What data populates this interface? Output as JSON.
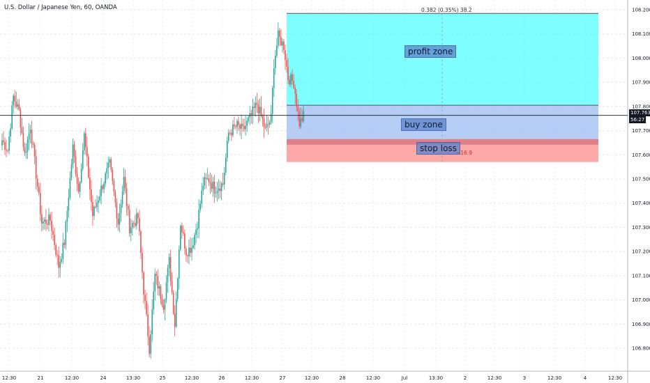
{
  "title": "U.S. Dollar / Japanese Yen, 60, OANDA",
  "price_tag": {
    "price": "107.763",
    "countdown": "56:27"
  },
  "zones": {
    "profit": "profit zone",
    "buy": "buy zone",
    "stop": "stop loss",
    "profit_ratio": "0.382 (0.35%) 38.2",
    "stop_ratio": "−16.9"
  },
  "colors": {
    "up": "#26a69a",
    "down": "#ef5350",
    "profit": "#00ffff",
    "buy": "#a9c6f5",
    "stop": "#ff9e9e"
  },
  "chart_data": {
    "type": "candlestick",
    "ylim": [
      106.72,
      108.24
    ],
    "y_ticks": [
      "108.200",
      "108.100",
      "108.000",
      "107.900",
      "107.800",
      "107.700",
      "107.600",
      "107.500",
      "107.400",
      "107.300",
      "107.200",
      "107.100",
      "107.000",
      "106.900",
      "106.800"
    ],
    "x_ticks": [
      "12:30",
      "21",
      "12:30",
      "24",
      "13:30",
      "25",
      "12:30",
      "26",
      "12:30",
      "27",
      "12:30",
      "28",
      "12:30",
      "Jul",
      "13:30",
      "2",
      "12:30",
      "3",
      "12:30",
      "4",
      "12:30"
    ],
    "last_price": 107.763,
    "trade": {
      "profit_top": 108.185,
      "entry": 107.805,
      "stop_top": 107.665,
      "stop_bottom": 107.57
    },
    "anchors": [
      [
        0,
        107.66
      ],
      [
        4,
        107.62
      ],
      [
        8,
        107.84
      ],
      [
        12,
        107.78
      ],
      [
        16,
        107.6
      ],
      [
        20,
        107.72
      ],
      [
        28,
        107.32
      ],
      [
        34,
        107.33
      ],
      [
        40,
        107.14
      ],
      [
        44,
        107.24
      ],
      [
        50,
        107.63
      ],
      [
        54,
        107.45
      ],
      [
        58,
        107.68
      ],
      [
        64,
        107.35
      ],
      [
        70,
        107.46
      ],
      [
        76,
        107.56
      ],
      [
        82,
        107.32
      ],
      [
        86,
        107.5
      ],
      [
        90,
        107.3
      ],
      [
        96,
        107.34
      ],
      [
        100,
        107.04
      ],
      [
        104,
        106.8
      ],
      [
        108,
        107.1
      ],
      [
        114,
        106.98
      ],
      [
        118,
        107.16
      ],
      [
        122,
        106.9
      ],
      [
        126,
        107.32
      ],
      [
        130,
        107.2
      ],
      [
        134,
        107.22
      ],
      [
        138,
        107.32
      ],
      [
        142,
        107.48
      ],
      [
        146,
        107.5
      ],
      [
        150,
        107.46
      ],
      [
        156,
        107.48
      ],
      [
        160,
        107.69
      ],
      [
        166,
        107.72
      ],
      [
        170,
        107.7
      ],
      [
        174,
        107.74
      ],
      [
        180,
        107.81
      ],
      [
        184,
        107.74
      ],
      [
        186,
        107.7
      ],
      [
        190,
        107.75
      ],
      [
        192,
        107.98
      ],
      [
        195,
        108.09
      ],
      [
        199,
        108.05
      ],
      [
        202,
        107.92
      ],
      [
        206,
        107.9
      ],
      [
        210,
        107.73
      ],
      [
        213,
        107.76
      ]
    ]
  }
}
